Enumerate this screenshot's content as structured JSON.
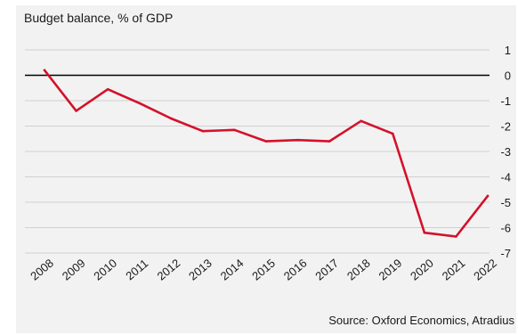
{
  "chart_data": {
    "type": "line",
    "title": "Budget balance, % of GDP",
    "source": "Source: Oxford Economics, Atradius",
    "x": [
      "2008",
      "2009",
      "2010",
      "2011",
      "2012",
      "2013",
      "2014",
      "2015",
      "2016",
      "2017",
      "2018",
      "2019",
      "2020",
      "2021",
      "2022"
    ],
    "series": [
      {
        "values": [
          0.2,
          -1.4,
          -0.55,
          -1.1,
          -1.7,
          -2.2,
          -2.15,
          -2.6,
          -2.55,
          -2.6,
          -1.8,
          -2.3,
          -6.2,
          -6.35,
          -4.75
        ]
      }
    ],
    "yticks": [
      1,
      0,
      -1,
      -2,
      -3,
      -4,
      -5,
      -6,
      -7
    ],
    "ylim": [
      -7,
      1
    ],
    "grid": true,
    "legend": "none",
    "colors": {
      "line": "#d4112b",
      "zero_line": "#000000",
      "grid": "#d0d0d0",
      "background": "#f2f2f2"
    }
  }
}
